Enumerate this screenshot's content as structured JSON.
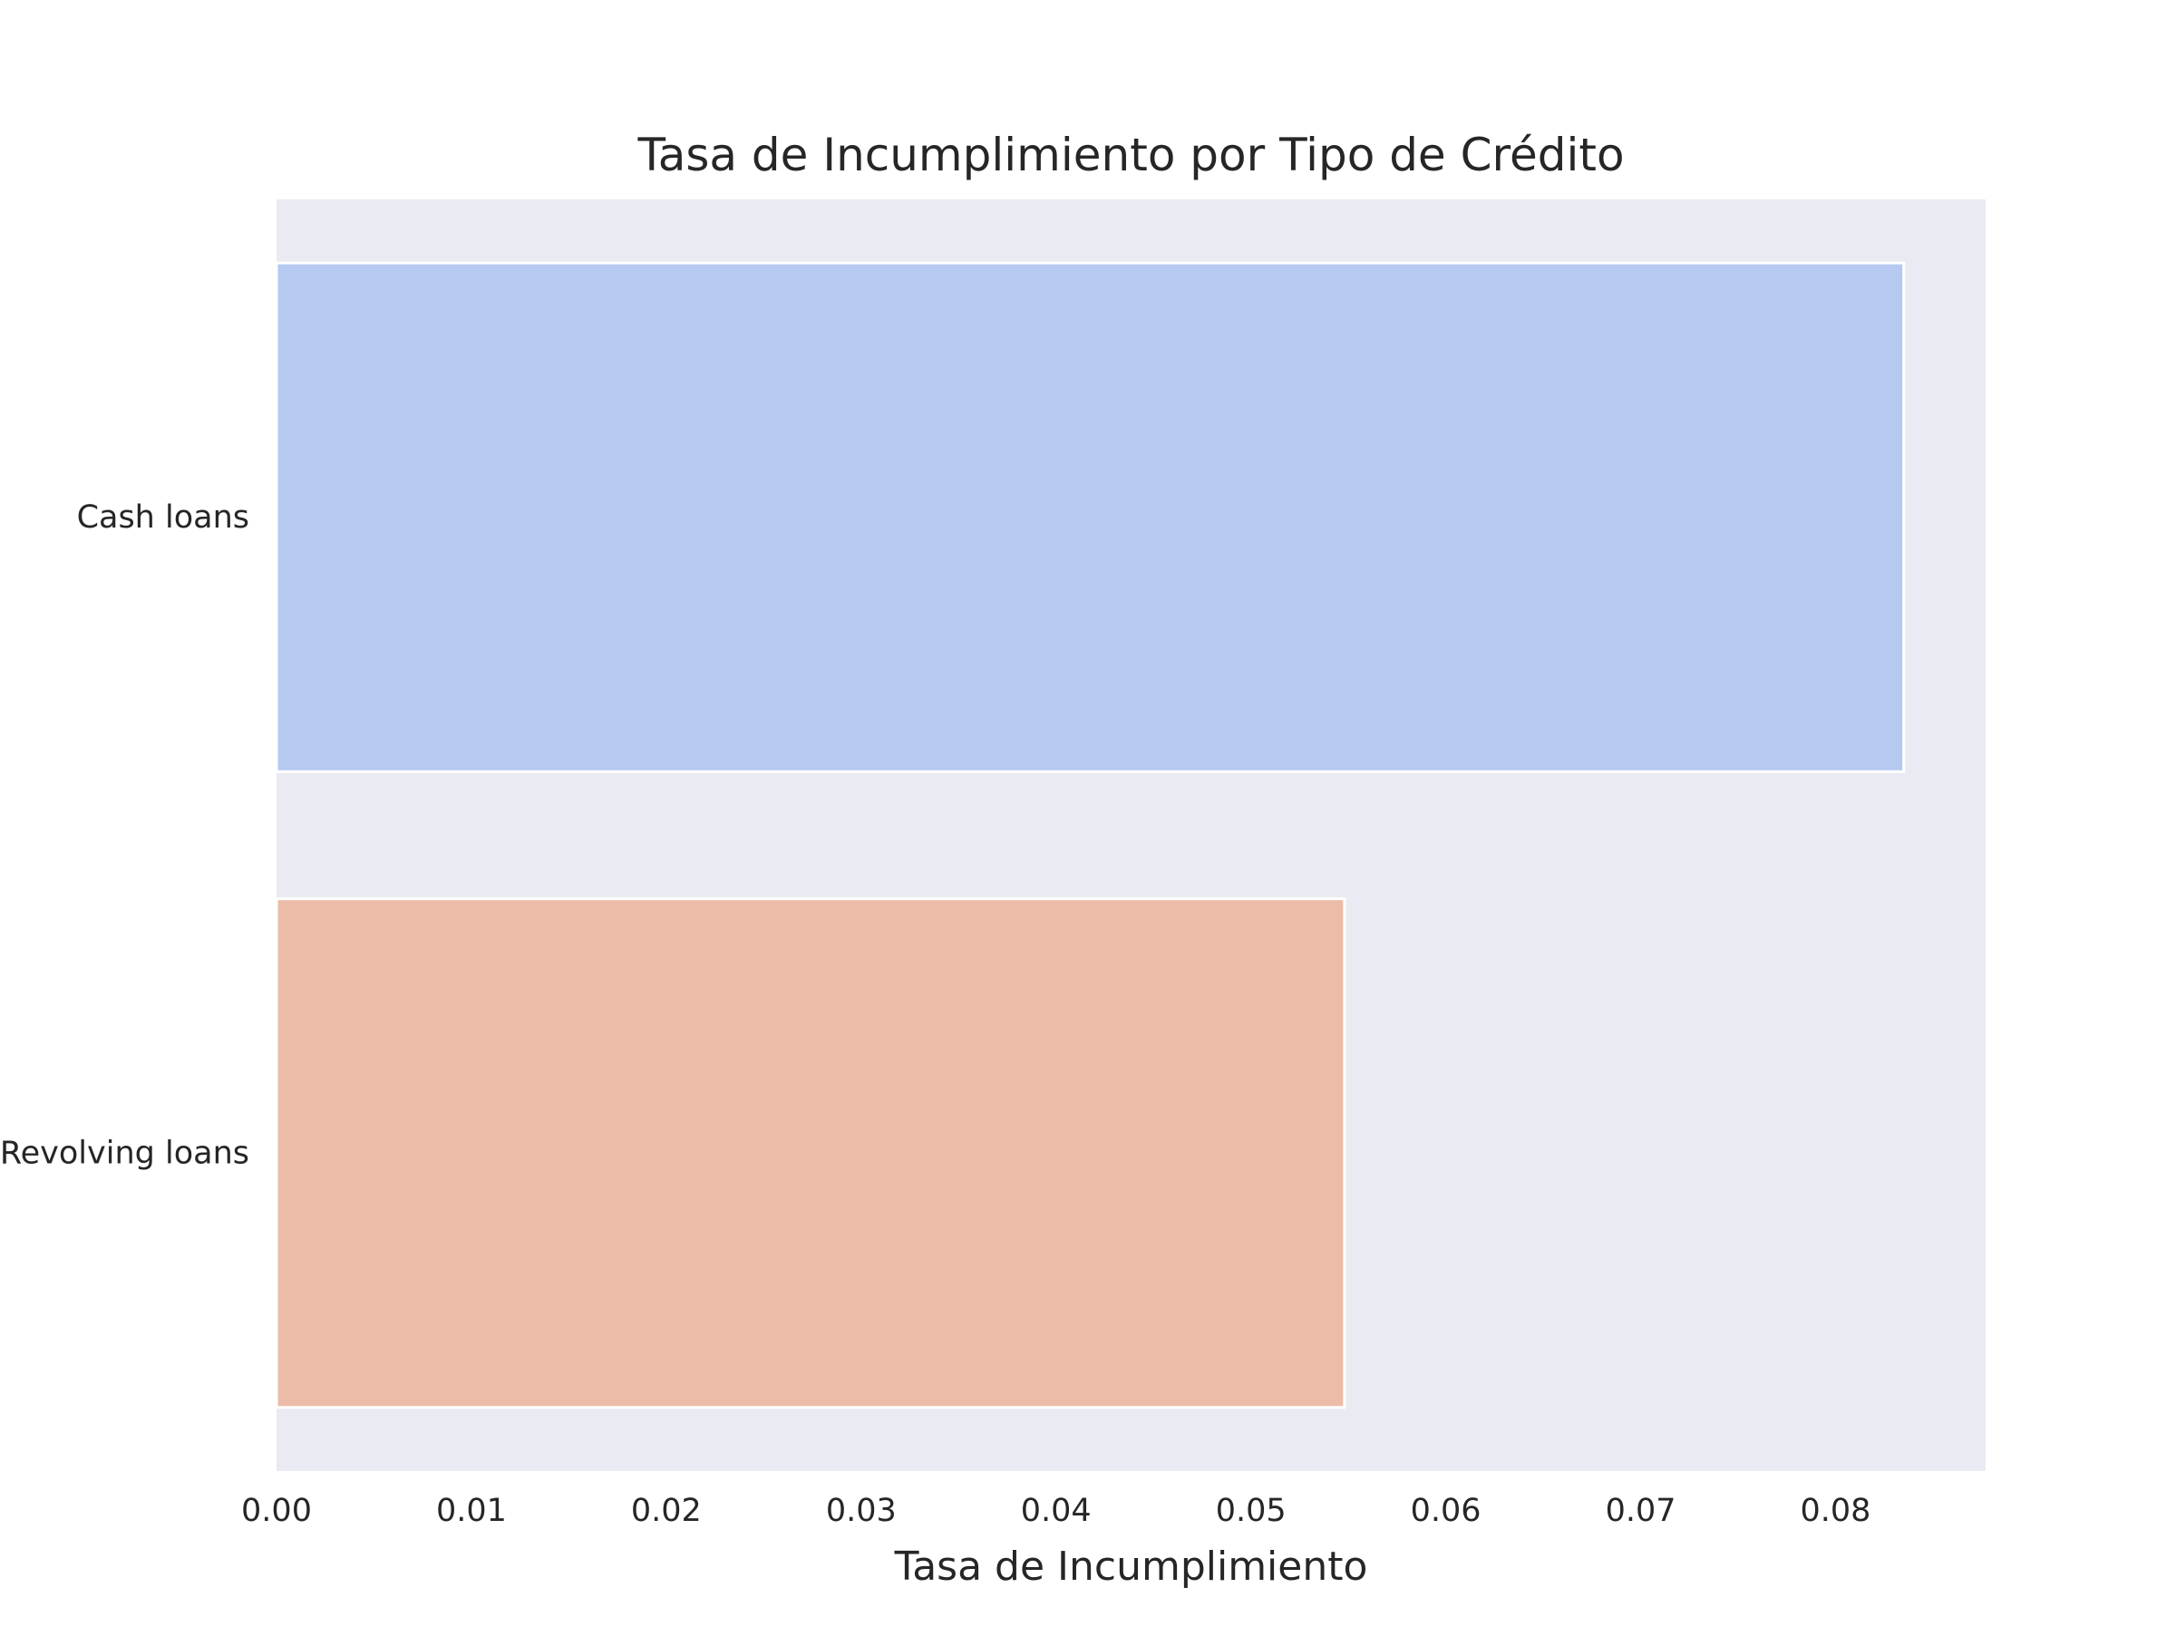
{
  "chart_data": {
    "type": "bar",
    "orientation": "horizontal",
    "title": "Tasa de Incumplimiento por Tipo de Crédito",
    "xlabel": "Tasa de Incumplimiento",
    "ylabel": "",
    "categories": [
      "Cash loans",
      "Revolving loans"
    ],
    "values": [
      0.0835,
      0.0548
    ],
    "colors": [
      "#b5c9f1",
      "#ecbca8"
    ],
    "xlim": [
      0,
      0.0877
    ],
    "xticks": [
      0.0,
      0.01,
      0.02,
      0.03,
      0.04,
      0.05,
      0.06,
      0.07,
      0.08
    ],
    "xtick_labels": [
      "0.00",
      "0.01",
      "0.02",
      "0.03",
      "0.04",
      "0.05",
      "0.06",
      "0.07",
      "0.08"
    ],
    "grid": false,
    "background": "#eaeaf2",
    "legend": "none"
  }
}
